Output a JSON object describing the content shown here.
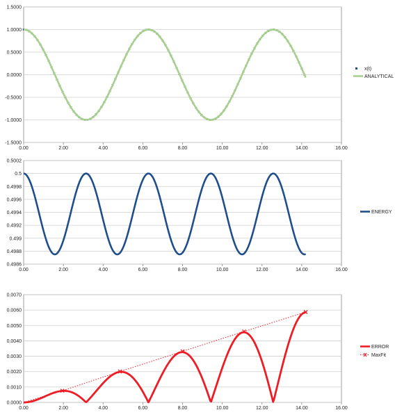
{
  "chart_data": [
    {
      "type": "scatter",
      "title": "",
      "xlabel": "",
      "ylabel": "",
      "xlim": [
        0,
        16
      ],
      "ylim": [
        -1.5,
        1.5
      ],
      "x_ticks": [
        "0.00",
        "2.00",
        "4.00",
        "6.00",
        "8.00",
        "10.00",
        "12.00",
        "14.00",
        "16.00"
      ],
      "y_ticks": [
        "1.5000",
        "1.0000",
        "0.5000",
        "0.0000",
        "-0.5000",
        "-1.0000",
        "-1.5000"
      ],
      "grid": "horizontal",
      "legend_position": "right",
      "series": [
        {
          "name": "x(t)",
          "kind": "markers",
          "color": "#1f4e8c",
          "x_start": 0,
          "x_end": 14.2,
          "step": 0.14,
          "function": "cos(t)"
        },
        {
          "name": "ANALYTICAL",
          "kind": "line",
          "color": "#a8d08d",
          "x_start": 0,
          "x_end": 14.2,
          "function": "cos(t)"
        }
      ]
    },
    {
      "type": "line",
      "title": "",
      "xlabel": "",
      "ylabel": "",
      "xlim": [
        0,
        16
      ],
      "ylim": [
        0.4986,
        0.5002
      ],
      "x_ticks": [
        "0.00",
        "2.00",
        "4.00",
        "6.00",
        "8.00",
        "10.00",
        "12.00",
        "14.00",
        "16.00"
      ],
      "y_ticks": [
        "0.5002",
        "0.5",
        "0.4998",
        "0.4996",
        "0.4994",
        "0.4992",
        "0.499",
        "0.4988",
        "0.4986"
      ],
      "grid": "horizontal",
      "legend_position": "right",
      "series": [
        {
          "name": "ENERGY",
          "color": "#1f4e8c",
          "x_start": 0,
          "x_end": 14.2,
          "max": 0.5,
          "min": 0.49875,
          "period": 3.1416
        }
      ]
    },
    {
      "type": "line",
      "title": "",
      "xlabel": "",
      "ylabel": "",
      "xlim": [
        0,
        16
      ],
      "ylim": [
        0,
        0.007
      ],
      "x_ticks": [
        "0.00",
        "2.00",
        "4.00",
        "6.00",
        "8.00",
        "10.00",
        "12.00",
        "14.00",
        "16.00"
      ],
      "y_ticks": [
        "0.0070",
        "0.0060",
        "0.0050",
        "0.0040",
        "0.0030",
        "0.0020",
        "0.0010",
        "0.0000"
      ],
      "grid": "horizontal",
      "legend_position": "right",
      "series": [
        {
          "name": "ERROR",
          "color": "#ee1c24",
          "x_start": 0,
          "x_end": 14.2,
          "growth_per_t": 0.000413
        },
        {
          "name": "MaxFit",
          "color": "#ee1c24",
          "style": "dotted",
          "x": [
            0,
            1.95,
            4.85,
            8.0,
            11.1,
            14.2
          ],
          "y": [
            0,
            0.00076,
            0.00201,
            0.00332,
            0.00461,
            0.00587
          ]
        }
      ]
    }
  ]
}
